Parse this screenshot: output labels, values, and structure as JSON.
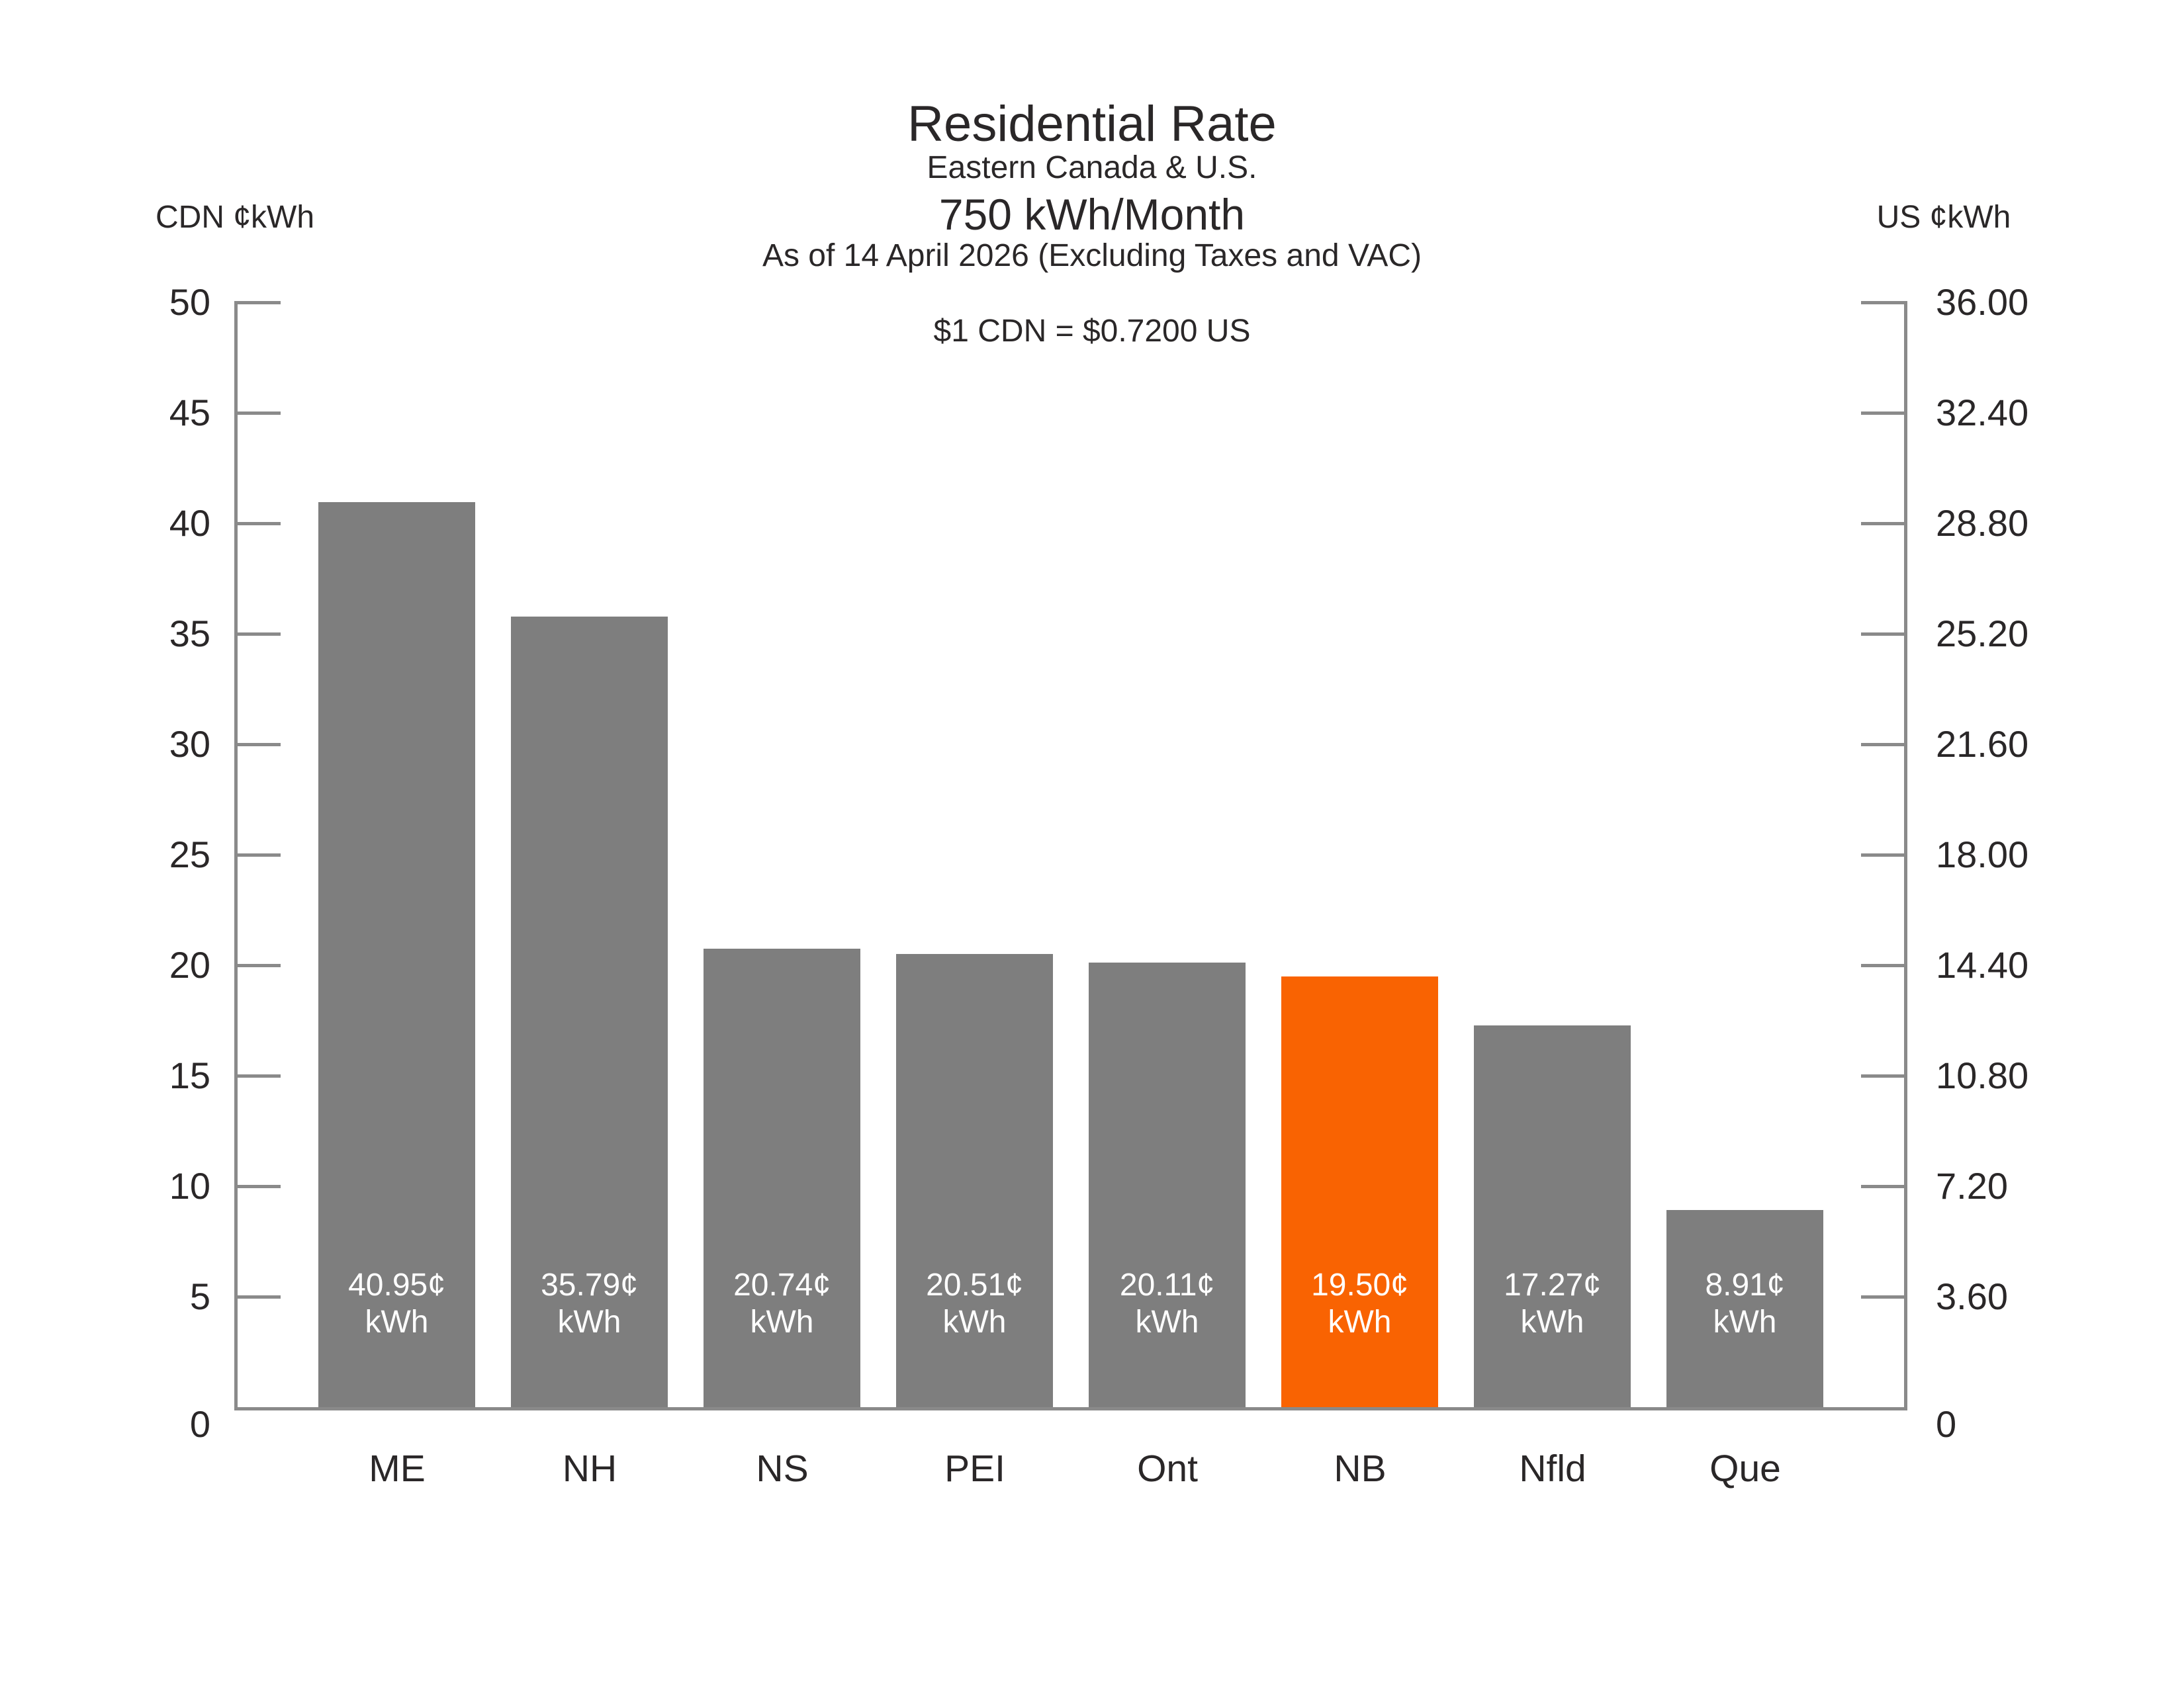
{
  "header": {
    "title": "Residential Rate",
    "subtitle": "Eastern Canada & U.S.",
    "consumption": "750 kWh/Month",
    "as_of": "As of 14 April 2026 (Excluding Taxes and VAC)",
    "exchange_note": "$1 CDN = $0.7200 US"
  },
  "axes": {
    "left": {
      "unit_label": "CDN ¢kWh",
      "max": 50,
      "ticks": [
        "50",
        "45",
        "40",
        "35",
        "30",
        "25",
        "20",
        "15",
        "10",
        "5",
        "0"
      ]
    },
    "right": {
      "unit_label": "US ¢kWh",
      "max": 36,
      "ticks": [
        "36.00",
        "32.40",
        "28.80",
        "25.20",
        "21.60",
        "18.00",
        "14.40",
        "10.80",
        "7.20",
        "3.60",
        "0"
      ]
    }
  },
  "chart_data": {
    "type": "bar",
    "title": "Residential Rate",
    "subtitle": "Eastern Canada & U.S.",
    "note1": "750 kWh/Month",
    "note2": "As of 14 April 2026 (Excluding Taxes and VAC)",
    "exchange_rate_text": "$1 CDN = $0.7200 US",
    "categories": [
      "ME",
      "NH",
      "NS",
      "PEI",
      "Ont",
      "NB",
      "Nfld",
      "Que"
    ],
    "values": [
      40.95,
      35.79,
      20.74,
      20.51,
      20.11,
      19.5,
      17.27,
      8.91
    ],
    "bar_value_labels": [
      "40.95¢",
      "35.79¢",
      "20.74¢",
      "20.51¢",
      "20.11¢",
      "19.50¢",
      "17.27¢",
      "8.91¢"
    ],
    "bar_unit_label": "kWh",
    "highlight_category": "NB",
    "highlight_index": 5,
    "ylabel_left": "CDN ¢kWh",
    "ylabel_right": "US ¢kWh",
    "ylim_left": [
      0,
      50
    ],
    "ylim_right": [
      0,
      36
    ],
    "grid": false,
    "legend_position": "none",
    "colors": {
      "bar": "#7e7e7e",
      "highlight": "#f96302",
      "axis": "#8a8a8a",
      "text": "#2a2728",
      "bar_label_text": "#ffffff"
    }
  }
}
